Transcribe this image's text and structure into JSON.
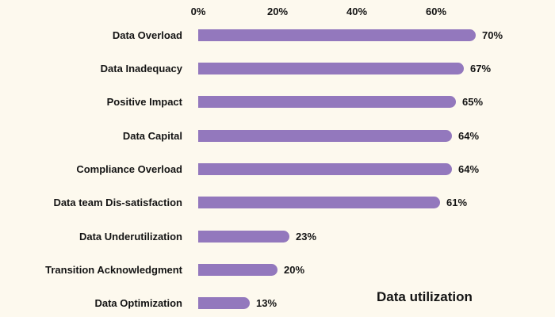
{
  "chart_data": {
    "type": "bar",
    "orientation": "horizontal",
    "title": "Data utilization",
    "categories": [
      "Data Overload",
      "Data Inadequacy",
      "Positive Impact",
      "Data Capital",
      "Compliance Overload",
      "Data team Dis-satisfaction",
      "Data Underutilization",
      "Transition Acknowledgment",
      "Data Optimization"
    ],
    "values": [
      70,
      67,
      65,
      64,
      64,
      61,
      23,
      20,
      13
    ],
    "value_labels": [
      "70%",
      "67%",
      "65%",
      "64%",
      "64%",
      "61%",
      "23%",
      "20%",
      "13%"
    ],
    "x_ticks": [
      {
        "label": "0%",
        "value": 0
      },
      {
        "label": "20%",
        "value": 20
      },
      {
        "label": "40%",
        "value": 40
      },
      {
        "label": "60%",
        "value": 60
      }
    ],
    "xlim": [
      0,
      90
    ],
    "grid": false,
    "legend": "none",
    "axis_position": "top"
  },
  "colors": {
    "bar": "#9378BD",
    "background": "#FDF9EE",
    "text": "#141414"
  },
  "layout_hints": {
    "value_suffix": "%"
  }
}
